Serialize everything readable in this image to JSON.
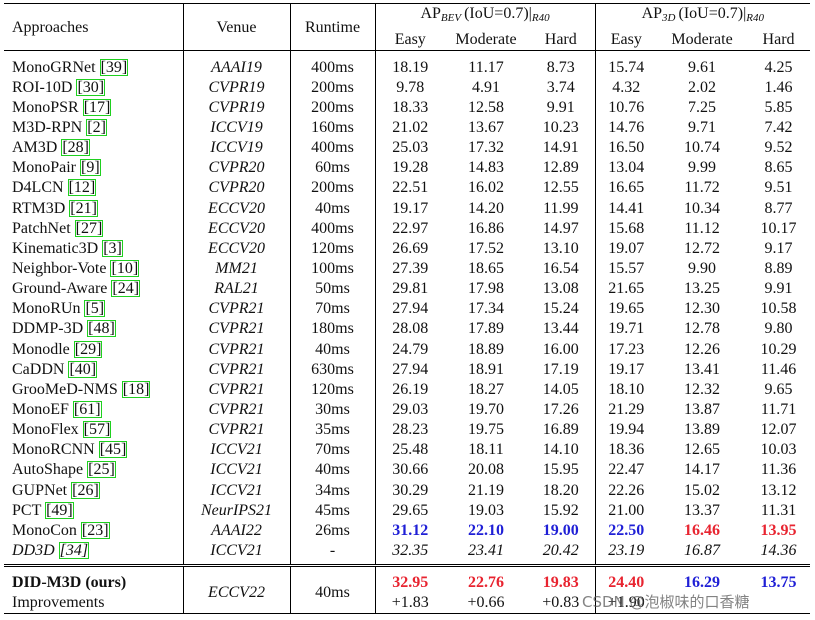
{
  "table": {
    "header": {
      "approaches": "Approaches",
      "venue": "Venue",
      "runtime": "Runtime",
      "groups": [
        {
          "ap": "AP",
          "sub": "BEV",
          "cond": "(IoU=0.7)|",
          "metric": "R40"
        },
        {
          "ap": "AP",
          "sub": "3D",
          "cond": "(IoU=0.7)|",
          "metric": "R40"
        }
      ],
      "columns": [
        "Easy",
        "Moderate",
        "Hard",
        "Easy",
        "Moderate",
        "Hard"
      ]
    },
    "rows": [
      {
        "name": "MonoGRNet",
        "ref": "[39]",
        "venue": "AAAI19",
        "runtime": "400ms",
        "values": [
          "18.19",
          "11.17",
          "8.73",
          "15.74",
          "9.61",
          "4.25"
        ]
      },
      {
        "name": "ROI-10D",
        "ref": "[30]",
        "venue": "CVPR19",
        "runtime": "200ms",
        "values": [
          "9.78",
          "4.91",
          "3.74",
          "4.32",
          "2.02",
          "1.46"
        ]
      },
      {
        "name": "MonoPSR",
        "ref": "[17]",
        "venue": "CVPR19",
        "runtime": "200ms",
        "values": [
          "18.33",
          "12.58",
          "9.91",
          "10.76",
          "7.25",
          "5.85"
        ]
      },
      {
        "name": "M3D-RPN",
        "ref": "[2]",
        "venue": "ICCV19",
        "runtime": "160ms",
        "values": [
          "21.02",
          "13.67",
          "10.23",
          "14.76",
          "9.71",
          "7.42"
        ]
      },
      {
        "name": "AM3D",
        "ref": "[28]",
        "venue": "ICCV19",
        "runtime": "400ms",
        "values": [
          "25.03",
          "17.32",
          "14.91",
          "16.50",
          "10.74",
          "9.52"
        ]
      },
      {
        "name": "MonoPair",
        "ref": "[9]",
        "venue": "CVPR20",
        "runtime": "60ms",
        "values": [
          "19.28",
          "14.83",
          "12.89",
          "13.04",
          "9.99",
          "8.65"
        ]
      },
      {
        "name": "D4LCN",
        "ref": "[12]",
        "venue": "CVPR20",
        "runtime": "200ms",
        "values": [
          "22.51",
          "16.02",
          "12.55",
          "16.65",
          "11.72",
          "9.51"
        ]
      },
      {
        "name": "RTM3D",
        "ref": "[21]",
        "venue": "ECCV20",
        "runtime": "40ms",
        "values": [
          "19.17",
          "14.20",
          "11.99",
          "14.41",
          "10.34",
          "8.77"
        ]
      },
      {
        "name": "PatchNet",
        "ref": "[27]",
        "venue": "ECCV20",
        "runtime": "400ms",
        "values": [
          "22.97",
          "16.86",
          "14.97",
          "15.68",
          "11.12",
          "10.17"
        ]
      },
      {
        "name": "Kinematic3D",
        "ref": "[3]",
        "venue": "ECCV20",
        "runtime": "120ms",
        "values": [
          "26.69",
          "17.52",
          "13.10",
          "19.07",
          "12.72",
          "9.17"
        ]
      },
      {
        "name": "Neighbor-Vote",
        "ref": "[10]",
        "venue": "MM21",
        "runtime": "100ms",
        "values": [
          "27.39",
          "18.65",
          "16.54",
          "15.57",
          "9.90",
          "8.89"
        ]
      },
      {
        "name": "Ground-Aware",
        "ref": "[24]",
        "venue": "RAL21",
        "runtime": "50ms",
        "values": [
          "29.81",
          "17.98",
          "13.08",
          "21.65",
          "13.25",
          "9.91"
        ]
      },
      {
        "name": "MonoRUn",
        "ref": "[5]",
        "venue": "CVPR21",
        "runtime": "70ms",
        "values": [
          "27.94",
          "17.34",
          "15.24",
          "19.65",
          "12.30",
          "10.58"
        ]
      },
      {
        "name": "DDMP-3D",
        "ref": "[48]",
        "venue": "CVPR21",
        "runtime": "180ms",
        "values": [
          "28.08",
          "17.89",
          "13.44",
          "19.71",
          "12.78",
          "9.80"
        ]
      },
      {
        "name": "Monodle",
        "ref": "[29]",
        "venue": "CVPR21",
        "runtime": "40ms",
        "values": [
          "24.79",
          "18.89",
          "16.00",
          "17.23",
          "12.26",
          "10.29"
        ]
      },
      {
        "name": "CaDDN",
        "ref": "[40]",
        "venue": "CVPR21",
        "runtime": "630ms",
        "values": [
          "27.94",
          "18.91",
          "17.19",
          "19.17",
          "13.41",
          "11.46"
        ]
      },
      {
        "name": "GrooMeD-NMS",
        "ref": "[18]",
        "venue": "CVPR21",
        "runtime": "120ms",
        "values": [
          "26.19",
          "18.27",
          "14.05",
          "18.10",
          "12.32",
          "9.65"
        ]
      },
      {
        "name": "MonoEF",
        "ref": "[61]",
        "venue": "CVPR21",
        "runtime": "30ms",
        "values": [
          "29.03",
          "19.70",
          "17.26",
          "21.29",
          "13.87",
          "11.71"
        ]
      },
      {
        "name": "MonoFlex",
        "ref": "[57]",
        "venue": "CVPR21",
        "runtime": "35ms",
        "values": [
          "28.23",
          "19.75",
          "16.89",
          "19.94",
          "13.89",
          "12.07"
        ]
      },
      {
        "name": "MonoRCNN",
        "ref": "[45]",
        "venue": "ICCV21",
        "runtime": "70ms",
        "values": [
          "25.48",
          "18.11",
          "14.10",
          "18.36",
          "12.65",
          "10.03"
        ]
      },
      {
        "name": "AutoShape",
        "ref": "[25]",
        "venue": "ICCV21",
        "runtime": "40ms",
        "values": [
          "30.66",
          "20.08",
          "15.95",
          "22.47",
          "14.17",
          "11.36"
        ]
      },
      {
        "name": "GUPNet",
        "ref": "[26]",
        "venue": "ICCV21",
        "runtime": "34ms",
        "values": [
          "30.29",
          "21.19",
          "18.20",
          "22.26",
          "15.02",
          "13.12"
        ]
      },
      {
        "name": "PCT",
        "ref": "[49]",
        "venue": "NeurIPS21",
        "runtime": "45ms",
        "values": [
          "29.65",
          "19.03",
          "15.92",
          "21.00",
          "13.37",
          "11.31"
        ]
      },
      {
        "name": "MonoCon",
        "ref": "[23]",
        "venue": "AAAI22",
        "runtime": "26ms",
        "values": [
          "31.12",
          "22.10",
          "19.00",
          "22.50",
          "16.46",
          "13.95"
        ],
        "colors": [
          "#1f1fd6",
          "#1f1fd6",
          "#1f1fd6",
          "#1f1fd6",
          "#e82430",
          "#e82430"
        ]
      },
      {
        "name": "DD3D",
        "ref": "[34]",
        "venue": "ICCV21",
        "runtime": "-",
        "values": [
          "32.35",
          "23.41",
          "20.42",
          "23.19",
          "16.87",
          "14.36"
        ],
        "italic": true
      }
    ],
    "ours": {
      "name": "DID-M3D (ours)",
      "venue": "ECCV22",
      "runtime": "40ms",
      "values": [
        "32.95",
        "22.76",
        "19.83",
        "24.40",
        "16.29",
        "13.75"
      ],
      "colors": [
        "#e82430",
        "#e82430",
        "#e82430",
        "#e82430",
        "#1f1fd6",
        "#1f1fd6"
      ]
    },
    "improvements": {
      "label": "Improvements",
      "values": [
        "+1.83",
        "+0.66",
        "+0.83",
        "+1.90"
      ]
    }
  },
  "watermark": "CSDN @泡椒味的口香糖"
}
